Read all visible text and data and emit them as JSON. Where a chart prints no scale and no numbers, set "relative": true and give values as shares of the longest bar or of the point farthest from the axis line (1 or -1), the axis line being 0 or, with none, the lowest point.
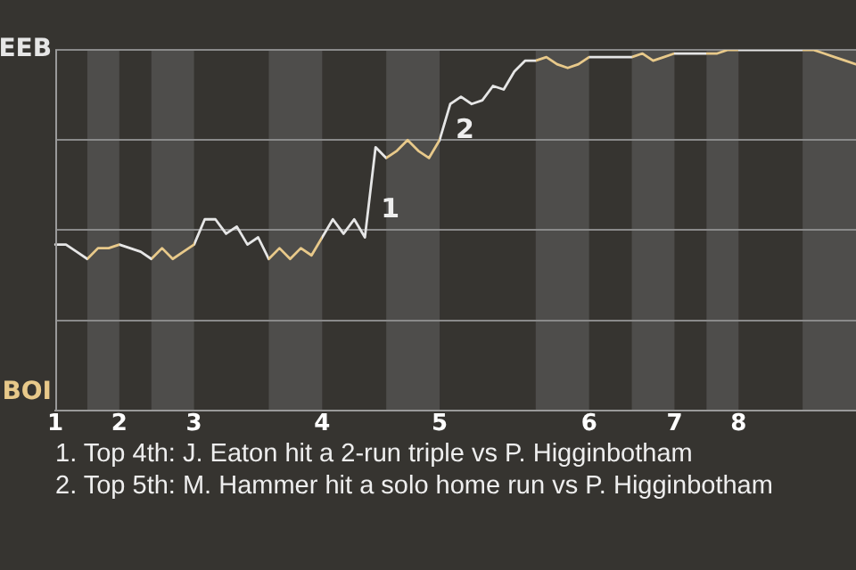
{
  "chart_data": {
    "type": "line",
    "relative": true,
    "categories": [
      "1",
      null,
      null,
      null,
      null,
      null,
      "2",
      null,
      null,
      null,
      null,
      null,
      null,
      "3",
      null,
      null,
      null,
      null,
      null,
      null,
      null,
      null,
      null,
      null,
      null,
      "4",
      null,
      null,
      null,
      null,
      null,
      null,
      null,
      null,
      null,
      null,
      "5",
      null,
      null,
      null,
      null,
      null,
      null,
      null,
      null,
      null,
      null,
      null,
      null,
      null,
      "6",
      null,
      null,
      null,
      null,
      null,
      null,
      null,
      "7",
      null,
      null,
      null,
      null,
      null,
      "8",
      null,
      null,
      null,
      null,
      null,
      null,
      null,
      null,
      null,
      null,
      null
    ],
    "grid": "y",
    "legend": false,
    "marker": "none",
    "line_style": "solid",
    "series": [
      {
        "color": "#e6e6e6",
        "values": [
          0.46,
          0.46,
          0.44,
          0.42,
          0.45,
          0.45,
          0.46,
          0.45,
          0.44,
          0.42,
          0.45,
          0.42,
          0.44,
          0.46,
          0.53,
          0.53,
          0.49,
          0.51,
          0.46,
          0.48,
          0.42,
          0.45,
          0.42,
          0.45,
          0.43,
          0.48,
          0.53,
          0.49,
          0.53,
          0.48,
          0.73,
          0.7,
          0.72,
          0.75,
          0.72,
          0.7,
          0.75,
          0.85,
          0.87,
          0.85,
          0.86,
          0.9,
          0.89,
          0.94,
          0.97,
          0.97,
          0.98,
          0.96,
          0.95,
          0.96,
          0.98,
          0.98,
          0.98,
          0.98,
          0.98,
          0.99,
          0.97,
          0.98,
          0.99,
          0.99,
          0.99,
          0.99,
          0.99,
          1,
          1,
          1,
          1,
          1,
          1,
          1,
          1,
          1,
          0.99,
          0.98,
          0.97,
          0.96
        ],
        "colors": [
          "#e6e6e6",
          "#e6e6e6",
          "#e6e6e6",
          "#e8c98a",
          "#e8c98a",
          "#e8c98a",
          "#e6e6e6",
          "#e6e6e6",
          "#e6e6e6",
          "#e8c98a",
          "#e8c98a",
          "#e8c98a",
          "#e8c98a",
          "#e6e6e6",
          "#e6e6e6",
          "#e6e6e6",
          "#e6e6e6",
          "#e6e6e6",
          "#e6e6e6",
          "#e6e6e6",
          "#e8c98a",
          "#e8c98a",
          "#e8c98a",
          "#e8c98a",
          "#e8c98a",
          "#e6e6e6",
          "#e6e6e6",
          "#e6e6e6",
          "#e6e6e6",
          "#e6e6e6",
          "#e6e6e6",
          "#e8c98a",
          "#e8c98a",
          "#e8c98a",
          "#e8c98a",
          "#e8c98a",
          "#e6e6e6",
          "#e6e6e6",
          "#e6e6e6",
          "#e6e6e6",
          "#e6e6e6",
          "#e6e6e6",
          "#e6e6e6",
          "#e6e6e6",
          "#e6e6e6",
          "#e8c98a",
          "#e8c98a",
          "#e8c98a",
          "#e8c98a",
          "#e8c98a",
          "#e6e6e6",
          "#e6e6e6",
          "#e6e6e6",
          "#e6e6e6",
          "#e8c98a",
          "#e8c98a",
          "#e8c98a",
          "#e8c98a",
          "#e6e6e6",
          "#e6e6e6",
          "#e6e6e6",
          "#e8c98a",
          "#e8c98a",
          "#e8c98a",
          "#e6e6e6",
          "#e6e6e6",
          "#e6e6e6",
          "#e6e6e6",
          "#e6e6e6",
          "#e6e6e6",
          "#e8c98a",
          "#e8c98a",
          "#e8c98a",
          "#e8c98a",
          "#e8c98a",
          "#e8c98a"
        ]
      }
    ],
    "annotations": [
      "EEB",
      "BOI",
      "1",
      "2",
      "1. Top 4th: J. Eaton hit a 2-run triple vs P. Higginbotham",
      "2. Top 5th: M. Hammer hit a solo home run vs P. Higginbotham"
    ]
  }
}
